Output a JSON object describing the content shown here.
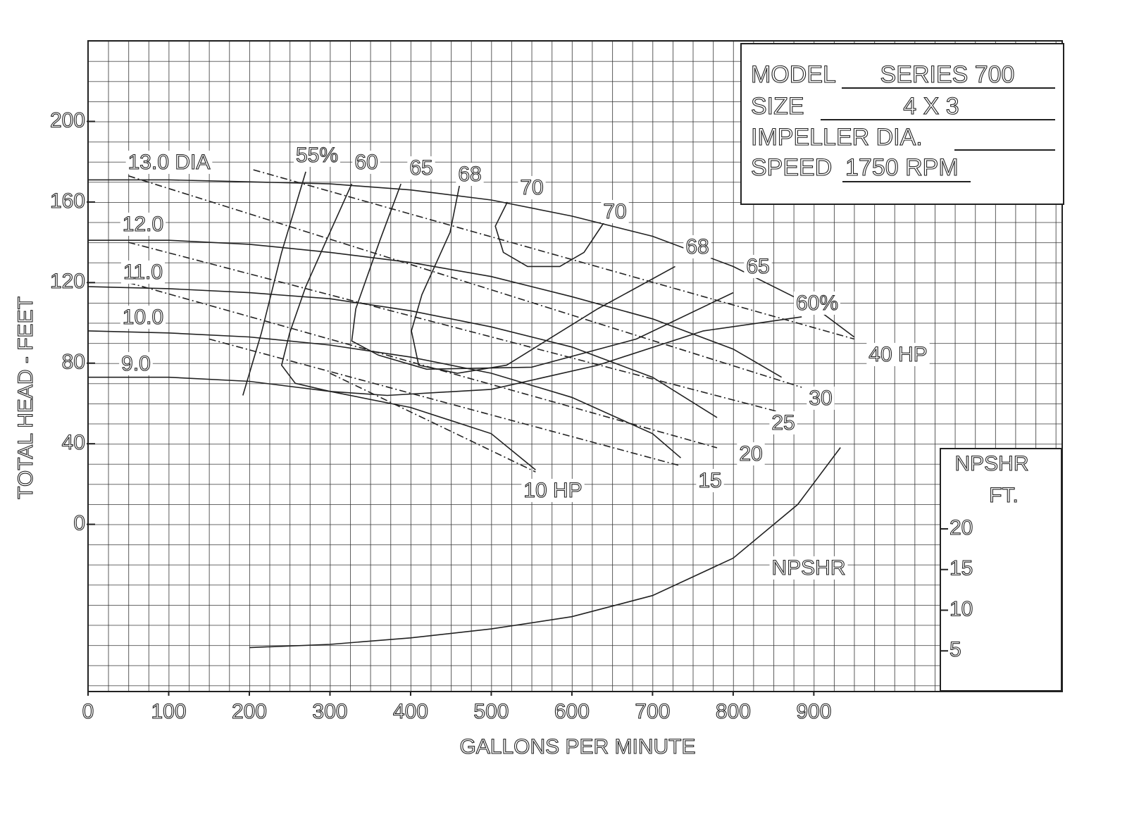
{
  "chart_data": {
    "type": "line",
    "xlabel": "GALLONS PER MINUTE",
    "ylabel": "TOTAL HEAD - FEET",
    "y2label": [
      "NPSHR",
      "FT."
    ],
    "xlim": [
      0,
      1208
    ],
    "ylim": [
      -83,
      240
    ],
    "y2lim": [
      0,
      80
    ],
    "xticks": [
      0,
      100,
      200,
      300,
      400,
      500,
      600,
      700,
      800,
      900
    ],
    "yticks": [
      0,
      40,
      80,
      120,
      160,
      200
    ],
    "y2ticks": [
      5,
      10,
      15,
      20
    ],
    "info": [
      {
        "label": "MODEL",
        "value": "SERIES 700"
      },
      {
        "label": "SIZE",
        "value": "4 X 3"
      },
      {
        "label": "IMPELLER DIA."
      },
      {
        "label": "SPEED",
        "value": "1750 RPM"
      }
    ],
    "series": [
      {
        "labels": [
          "13.0 DIA"
        ],
        "color": "#222",
        "x": [
          0,
          100,
          200,
          300,
          400,
          500,
          600,
          700,
          800,
          900,
          950
        ],
        "values": [
          171,
          171,
          170,
          169,
          166,
          161,
          153,
          143,
          128,
          108,
          93
        ]
      },
      {
        "labels": [
          "12.0"
        ],
        "color": "#222",
        "x": [
          0,
          100,
          200,
          300,
          400,
          500,
          600,
          700,
          800,
          860
        ],
        "values": [
          141,
          141,
          139,
          135,
          130,
          123,
          113,
          102,
          87,
          73
        ]
      },
      {
        "labels": [
          "11.0"
        ],
        "color": "#222",
        "x": [
          0,
          100,
          200,
          300,
          400,
          500,
          600,
          700,
          780
        ],
        "values": [
          118,
          117,
          115,
          112,
          106,
          98,
          88,
          73,
          53
        ]
      },
      {
        "labels": [
          "10.0"
        ],
        "color": "#222",
        "x": [
          0,
          100,
          200,
          300,
          400,
          500,
          600,
          700,
          735
        ],
        "values": [
          96,
          95,
          93,
          89,
          83,
          75,
          63,
          45,
          33
        ]
      },
      {
        "labels": [
          "9.0"
        ],
        "color": "#222",
        "x": [
          0,
          100,
          200,
          300,
          400,
          500,
          555
        ],
        "values": [
          73,
          73,
          71,
          66,
          58,
          45,
          27
        ]
      },
      {
        "labels": [
          "55%"
        ],
        "color": "#222",
        "x": [
          192,
          215,
          240,
          270
        ],
        "values": [
          64,
          95,
          135,
          175
        ]
      },
      {
        "labels": [
          "60",
          "60%"
        ],
        "color": "#222",
        "x": [
          327,
          300,
          270,
          250,
          240,
          257,
          300,
          371,
          500,
          632,
          763,
          885
        ],
        "values": [
          169,
          145,
          118,
          95,
          79,
          70,
          66,
          64,
          67,
          79,
          96,
          103
        ]
      },
      {
        "labels": [
          "65",
          "65"
        ],
        "color": "#222",
        "x": [
          388,
          362,
          332,
          327,
          360,
          420,
          550,
          680,
          800
        ],
        "values": [
          169,
          141,
          107,
          91,
          84,
          77,
          78,
          92,
          115
        ]
      },
      {
        "labels": [
          "68",
          "68"
        ],
        "color": "#222",
        "x": [
          462,
          449,
          414,
          401,
          410,
          458,
          519,
          632,
          728
        ],
        "values": [
          171,
          145,
          114,
          96,
          79,
          75,
          79,
          107,
          128
        ]
      },
      {
        "labels": [
          "70",
          "70"
        ],
        "color": "#222",
        "x": [
          520,
          505,
          515,
          545,
          585,
          615,
          640
        ],
        "values": [
          160,
          148,
          135,
          128,
          128,
          135,
          150
        ]
      },
      {
        "labels": [
          "40 HP"
        ],
        "color": "#222",
        "dashed": true,
        "x": [
          205,
          950
        ],
        "values": [
          176,
          92
        ]
      },
      {
        "labels": [
          "30"
        ],
        "color": "#222",
        "dashed": true,
        "x": [
          50,
          885
        ],
        "values": [
          173,
          68
        ]
      },
      {
        "labels": [
          "25"
        ],
        "color": "#222",
        "dashed": true,
        "x": [
          50,
          855
        ],
        "values": [
          140,
          56
        ]
      },
      {
        "labels": [
          "20"
        ],
        "color": "#222",
        "dashed": true,
        "x": [
          50,
          780
        ],
        "values": [
          120,
          38
        ]
      },
      {
        "labels": [
          "15"
        ],
        "color": "#222",
        "dashed": true,
        "x": [
          150,
          735
        ],
        "values": [
          92,
          29
        ]
      },
      {
        "labels": [
          "10 HP"
        ],
        "color": "#222",
        "dashed": true,
        "x": [
          300,
          555
        ],
        "values": [
          75,
          26
        ]
      },
      {
        "labels": [
          "NPSHR"
        ],
        "color": "#222",
        "axis": "y2",
        "x": [
          200,
          300,
          400,
          500,
          600,
          700,
          800,
          880,
          933
        ],
        "values": [
          5.4,
          5.8,
          6.6,
          7.7,
          9.2,
          11.8,
          16.4,
          23,
          30
        ]
      }
    ]
  }
}
